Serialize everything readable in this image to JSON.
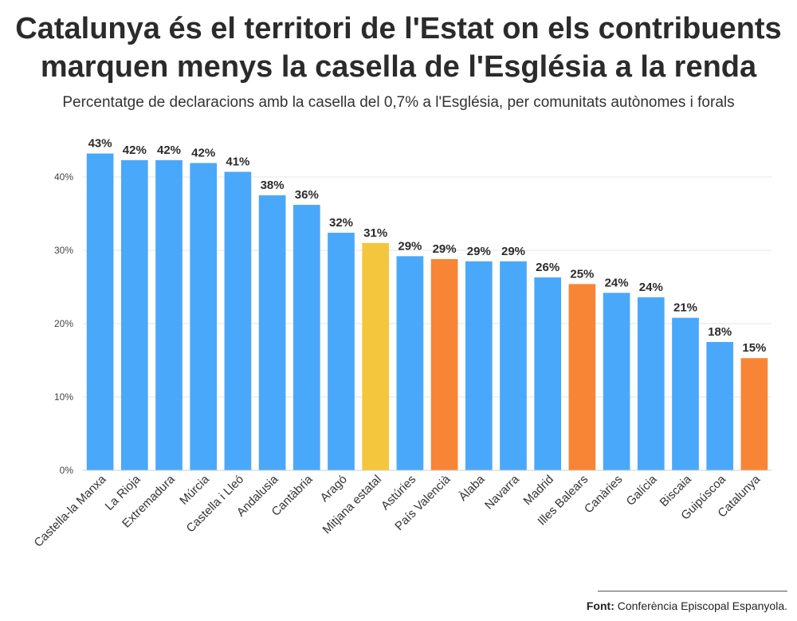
{
  "title_line1": "Catalunya és el territori de l'Estat on els contribuents",
  "title_line2": "marquen menys la casella de l'Església a la renda",
  "subtitle": "Percentatge de declaracions amb la casella del 0,7% a l'Església, per comunitats autònomes i forals",
  "source_label": "Font:",
  "source_text": "Conferència Episcopal Espanyola.",
  "colors": {
    "default": "#4aa8fb",
    "average": "#f4c63d",
    "highlight": "#f78535",
    "grid": "#e6e6e6",
    "axis_text": "#444444"
  },
  "chart_data": {
    "type": "bar",
    "ylim": [
      0,
      45
    ],
    "yticks": [
      0,
      10,
      20,
      30,
      40
    ],
    "ytick_labels": [
      "0%",
      "10%",
      "20%",
      "30%",
      "40%"
    ],
    "grid": true,
    "categories": [
      "Castella-la Manxa",
      "La Rioja",
      "Extremadura",
      "Múrcia",
      "Castella i Lleó",
      "Andalusia",
      "Cantàbria",
      "Aragó",
      "Mitjana estatal",
      "Astúries",
      "País Valencià",
      "Àlaba",
      "Navarra",
      "Madrid",
      "Illes Balears",
      "Canàries",
      "Galícia",
      "Biscaia",
      "Guipúscoa",
      "Catalunya"
    ],
    "values": [
      43.2,
      42.3,
      42.3,
      41.9,
      40.7,
      37.5,
      36.2,
      32.4,
      31.0,
      29.2,
      28.8,
      28.5,
      28.5,
      26.3,
      25.4,
      24.2,
      23.6,
      20.8,
      17.5,
      15.3
    ],
    "data_labels": [
      "43%",
      "42%",
      "42%",
      "42%",
      "41%",
      "38%",
      "36%",
      "32%",
      "31%",
      "29%",
      "29%",
      "29%",
      "29%",
      "26%",
      "25%",
      "24%",
      "24%",
      "21%",
      "18%",
      "15%"
    ],
    "color_keys": [
      "default",
      "default",
      "default",
      "default",
      "default",
      "default",
      "default",
      "default",
      "average",
      "default",
      "highlight",
      "default",
      "default",
      "default",
      "highlight",
      "default",
      "default",
      "default",
      "default",
      "highlight"
    ]
  }
}
